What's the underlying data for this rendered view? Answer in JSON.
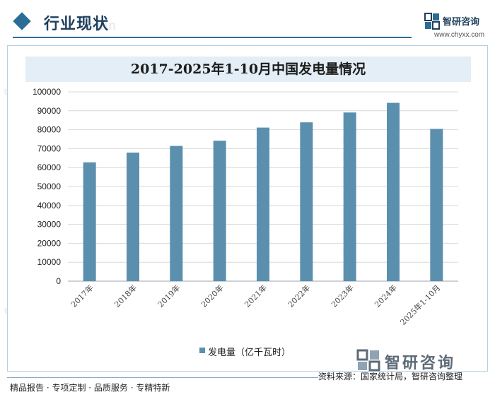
{
  "header": {
    "section_title": "行业现状",
    "background_text": "Chain",
    "brand_name": "智研咨询",
    "brand_url": "www.chyxx.com"
  },
  "colors": {
    "accent": "#2a6d97",
    "bar": "#5b8fae",
    "title_band": "#e3eef6"
  },
  "chart_data": {
    "type": "bar",
    "title": "2017-2025年1-10月中国发电量情况",
    "categories": [
      "2017年",
      "2018年",
      "2019年",
      "2020年",
      "2021年",
      "2022年",
      "2023年",
      "2024年",
      "2025年1-10月"
    ],
    "series": [
      {
        "name": "发电量（亿千瓦时）",
        "values": [
          62758,
          67914,
          71422,
          74170,
          81122,
          83886,
          89091,
          94181,
          80419
        ]
      }
    ],
    "ylim": [
      0,
      100000
    ],
    "yticks": [
      0,
      10000,
      20000,
      30000,
      40000,
      50000,
      60000,
      70000,
      80000,
      90000,
      100000
    ],
    "xlabel": "",
    "ylabel": "",
    "grid": true,
    "legend": "bottom-center"
  },
  "source": {
    "brand": "智研咨询",
    "text": "资料来源：国家统计局，智研咨询整理"
  },
  "footer": {
    "text": "精品报告 · 专项定制 · 品质服务 · 专精特新"
  }
}
